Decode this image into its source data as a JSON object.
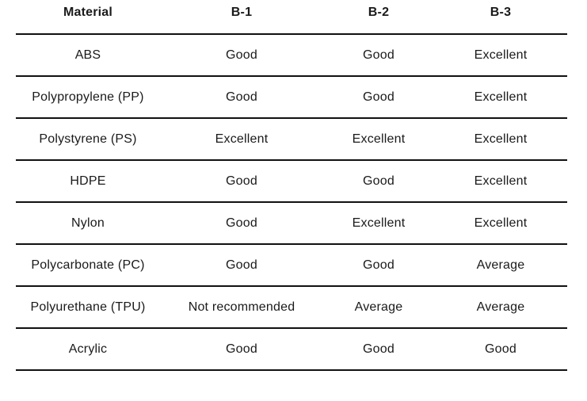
{
  "table": {
    "columns": [
      "Material",
      "B-1",
      "B-2",
      "B-3"
    ],
    "rows": [
      [
        "ABS",
        "Good",
        "Good",
        "Excellent"
      ],
      [
        "Polypropylene (PP)",
        "Good",
        "Good",
        "Excellent"
      ],
      [
        "Polystyrene (PS)",
        "Excellent",
        "Excellent",
        "Excellent"
      ],
      [
        "HDPE",
        "Good",
        "Good",
        "Excellent"
      ],
      [
        "Nylon",
        "Good",
        "Excellent",
        "Excellent"
      ],
      [
        "Polycarbonate (PC)",
        "Good",
        "Good",
        "Average"
      ],
      [
        "Polyurethane (TPU)",
        "Not recommended",
        "Average",
        "Average"
      ],
      [
        "Acrylic",
        "Good",
        "Good",
        "Good"
      ]
    ]
  },
  "colors": {
    "text": "#1a1a1a",
    "divider": "#111111",
    "background": "#ffffff"
  }
}
